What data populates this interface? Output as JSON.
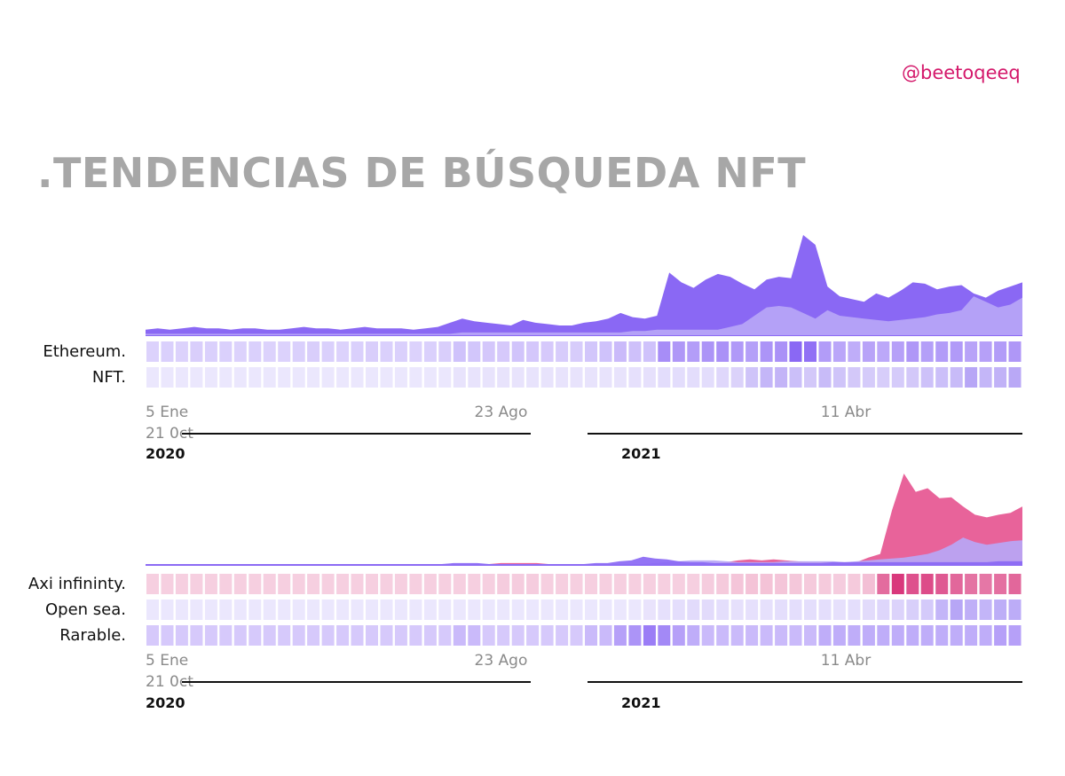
{
  "handle": "@beetoqeeq",
  "title": ".TENDENCIAS DE BÚSQUEDA NFT",
  "colors": {
    "purple": "#8a68f4",
    "lavender": "#b7a6f6",
    "pink": "#e8639a",
    "pink_strong": "#d9387c"
  },
  "chart_data": [
    {
      "type": "area",
      "series": [
        {
          "name": "Ethereum.",
          "color": "#8a68f4",
          "values": [
            4,
            5,
            4,
            5,
            6,
            5,
            5,
            4,
            5,
            5,
            4,
            4,
            5,
            6,
            5,
            5,
            4,
            5,
            6,
            5,
            5,
            5,
            4,
            5,
            6,
            9,
            12,
            10,
            9,
            8,
            7,
            11,
            9,
            8,
            7,
            7,
            9,
            10,
            12,
            16,
            13,
            12,
            14,
            45,
            38,
            34,
            40,
            44,
            42,
            37,
            33,
            40,
            42,
            41,
            72,
            65,
            35,
            28,
            26,
            24,
            30,
            27,
            32,
            38,
            37,
            33,
            35,
            36,
            30,
            27,
            32,
            35,
            38
          ]
        },
        {
          "name": "NFT.",
          "color": "#b7a6f6",
          "values": [
            1,
            1,
            1,
            1,
            1,
            1,
            1,
            1,
            1,
            1,
            1,
            1,
            1,
            1,
            1,
            1,
            1,
            1,
            1,
            1,
            1,
            1,
            1,
            1,
            1,
            1,
            2,
            2,
            2,
            2,
            2,
            2,
            2,
            2,
            2,
            2,
            2,
            2,
            2,
            2,
            3,
            3,
            4,
            4,
            4,
            4,
            4,
            4,
            6,
            8,
            14,
            20,
            21,
            20,
            16,
            12,
            18,
            14,
            13,
            12,
            11,
            10,
            11,
            12,
            13,
            15,
            16,
            18,
            28,
            24,
            20,
            22,
            27
          ]
        }
      ],
      "heatmap_rows": [
        "Ethereum.",
        "NFT."
      ],
      "x_ticks": [
        "5 Ene",
        "23  Ago",
        "11 Abr",
        "21 0ct"
      ],
      "year_labels": [
        "2020",
        "2021"
      ]
    },
    {
      "type": "area",
      "series": [
        {
          "name": "Axi infininty.",
          "color": "#e8639a",
          "values": [
            1,
            1,
            1,
            1,
            1,
            1,
            1,
            1,
            1,
            1,
            1,
            1,
            1,
            1,
            1,
            1,
            1,
            1,
            1,
            1,
            1,
            1,
            1,
            1,
            1,
            1,
            1,
            1,
            1,
            1,
            2,
            2,
            2,
            2,
            1,
            1,
            1,
            1,
            1,
            1,
            1,
            1,
            1,
            1,
            1,
            1,
            1,
            1,
            2,
            3,
            5,
            6,
            5,
            6,
            5,
            4,
            3,
            3,
            3,
            2,
            3,
            8,
            12,
            60,
            100,
            80,
            84,
            73,
            74,
            64,
            55,
            52,
            55,
            57,
            64
          ]
        },
        {
          "name": "Open sea.",
          "color": "#b7a6f6",
          "values": [
            1,
            1,
            1,
            1,
            1,
            1,
            1,
            1,
            1,
            1,
            1,
            1,
            1,
            1,
            1,
            1,
            1,
            1,
            1,
            1,
            1,
            1,
            1,
            1,
            1,
            1,
            1,
            1,
            1,
            1,
            1,
            1,
            1,
            1,
            1,
            1,
            1,
            1,
            1,
            1,
            1,
            1,
            1,
            2,
            3,
            4,
            5,
            5,
            5,
            4,
            3,
            3,
            3,
            3,
            4,
            4,
            4,
            4,
            4,
            3,
            4,
            5,
            6,
            7,
            8,
            10,
            12,
            16,
            22,
            30,
            25,
            22,
            24,
            26,
            27
          ]
        },
        {
          "name": "Rarable.",
          "color": "#8a68f4",
          "values": [
            1,
            1,
            1,
            1,
            1,
            1,
            1,
            1,
            1,
            1,
            1,
            1,
            1,
            1,
            1,
            1,
            1,
            1,
            1,
            1,
            1,
            1,
            1,
            1,
            1,
            1,
            2,
            2,
            2,
            1,
            1,
            1,
            1,
            1,
            1,
            1,
            1,
            1,
            2,
            2,
            4,
            5,
            9,
            7,
            6,
            4,
            3,
            3,
            2,
            2,
            2,
            2,
            2,
            2,
            2,
            2,
            2,
            2,
            3,
            3,
            3,
            3,
            3,
            3,
            3,
            3,
            3,
            3,
            3,
            3,
            3,
            3,
            4,
            4,
            4
          ]
        }
      ],
      "heatmap_rows": [
        "Axi infininty.",
        "Open sea.",
        "Rarable."
      ],
      "x_ticks": [
        "5 Ene",
        "23  Ago",
        "11 Abr",
        "21 0ct"
      ],
      "year_labels": [
        "2020",
        "2021"
      ]
    }
  ]
}
